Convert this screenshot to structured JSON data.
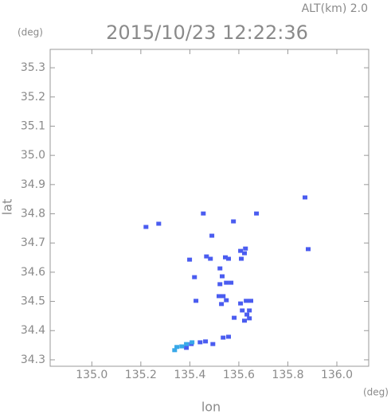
{
  "chart_data": {
    "type": "scatter",
    "subtitle": "ALT(km) 2.0",
    "title": "2015/10/23 12:22:36",
    "y_unit": "(deg)",
    "x_unit": "(deg)",
    "ylabel": "lat",
    "xlabel": "lon",
    "xlim": [
      134.83,
      136.13
    ],
    "ylim": [
      34.278,
      35.363
    ],
    "xticks": [
      {
        "value": 135,
        "label": "135.0"
      },
      135.2,
      135.4,
      135.6,
      135.8,
      {
        "value": 136,
        "label": "136.0"
      }
    ],
    "yticks": [
      34.3,
      34.4,
      34.5,
      34.6,
      34.7,
      34.8,
      34.9,
      {
        "value": 35,
        "label": "35.0"
      },
      35.1,
      35.2,
      35.3
    ],
    "series": [
      {
        "color": "#4a5cf0",
        "x": [
          135.221,
          135.273,
          135.399,
          135.455,
          135.468,
          135.484,
          135.49,
          135.545,
          135.558,
          135.523,
          135.532,
          135.523,
          135.578,
          135.61,
          135.607,
          135.627,
          135.623,
          135.519,
          135.536,
          135.549,
          135.568,
          135.529,
          135.549,
          135.607,
          135.614,
          135.633,
          135.623,
          135.643,
          135.63,
          135.649,
          135.643,
          135.536,
          135.558,
          135.425,
          135.406,
          135.442,
          135.464,
          135.386,
          135.494,
          135.419,
          135.87,
          135.883,
          135.672,
          135.581
        ],
        "values": [
          34.755,
          34.766,
          34.643,
          34.801,
          34.654,
          34.646,
          34.725,
          34.651,
          34.646,
          34.613,
          34.586,
          34.559,
          34.774,
          34.646,
          34.673,
          34.681,
          34.665,
          34.518,
          34.518,
          34.564,
          34.564,
          34.491,
          34.504,
          34.493,
          34.469,
          34.455,
          34.434,
          34.442,
          34.502,
          34.502,
          34.469,
          34.376,
          34.379,
          34.502,
          34.354,
          34.36,
          34.363,
          34.341,
          34.354,
          34.583,
          34.856,
          34.679,
          34.801,
          34.444
        ]
      },
      {
        "color": "#38a8e8",
        "x": [
          135.367,
          135.347,
          135.386,
          135.409,
          135.338
        ],
        "values": [
          34.346,
          34.344,
          34.354,
          34.36,
          34.333
        ]
      }
    ]
  }
}
